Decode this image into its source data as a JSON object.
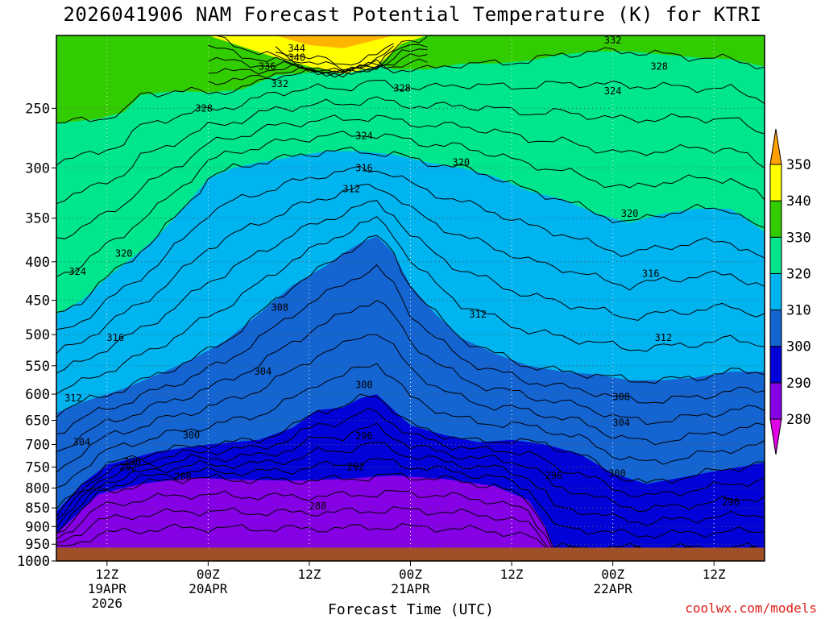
{
  "title": "2026041906 NAM Forecast Potential Temperature (K) for KTRI",
  "credit": "coolwx.com/models",
  "chart_data": {
    "type": "contour",
    "title": "2026041906 NAM Forecast Potential Temperature (K) for KTRI",
    "xlabel": "Forecast Time (UTC)",
    "ylabel": "",
    "x_range_hours": [
      0,
      84
    ],
    "y_range_hpa": [
      1000,
      200
    ],
    "y_scale": "log-pressure",
    "y_ticks": [
      250,
      300,
      350,
      400,
      450,
      500,
      550,
      600,
      650,
      700,
      750,
      800,
      850,
      900,
      950,
      1000
    ],
    "x_ticks": [
      {
        "hour": 6,
        "label": "12Z",
        "sub1": "19APR",
        "sub2": "2026"
      },
      {
        "hour": 18,
        "label": "00Z",
        "sub1": "20APR",
        "sub2": ""
      },
      {
        "hour": 30,
        "label": "12Z",
        "sub1": "",
        "sub2": ""
      },
      {
        "hour": 42,
        "label": "00Z",
        "sub1": "21APR",
        "sub2": ""
      },
      {
        "hour": 54,
        "label": "12Z",
        "sub1": "",
        "sub2": ""
      },
      {
        "hour": 66,
        "label": "00Z",
        "sub1": "22APR",
        "sub2": ""
      },
      {
        "hour": 78,
        "label": "12Z",
        "sub1": "",
        "sub2": ""
      }
    ],
    "colorbar": {
      "levels": [
        280,
        290,
        300,
        310,
        320,
        330,
        340,
        350
      ],
      "colors": [
        "#8600e6",
        "#0202d8",
        "#1464d2",
        "#00b4f0",
        "#00e68c",
        "#32cd00",
        "#ffff00",
        "#ffb400"
      ],
      "extend_low_color": "#e100e6",
      "extend_high_color": "#ffa000"
    },
    "terrain_color": "#a05028",
    "terrain_top_hpa": 960,
    "contour_interval_k": 4,
    "isentrope_levels": [
      284,
      286,
      288,
      290,
      292,
      294,
      296,
      298,
      300,
      302,
      304,
      306,
      308,
      310,
      312,
      314,
      316,
      318,
      320,
      322,
      324,
      326,
      328,
      330,
      332,
      334,
      336,
      338,
      340,
      342,
      344
    ],
    "contour_labels": [
      {
        "value": 344,
        "hour": 28.5,
        "hpa": 208
      },
      {
        "value": 340,
        "hour": 28.5,
        "hpa": 214
      },
      {
        "value": 336,
        "hour": 25.0,
        "hpa": 220
      },
      {
        "value": 332,
        "hour": 26.5,
        "hpa": 232
      },
      {
        "value": 332,
        "hour": 66.0,
        "hpa": 203
      },
      {
        "value": 328,
        "hour": 17.5,
        "hpa": 250
      },
      {
        "value": 328,
        "hour": 41.0,
        "hpa": 235
      },
      {
        "value": 328,
        "hour": 71.5,
        "hpa": 220
      },
      {
        "value": 324,
        "hour": 36.5,
        "hpa": 272
      },
      {
        "value": 324,
        "hour": 66.0,
        "hpa": 237
      },
      {
        "value": 324,
        "hour": 2.5,
        "hpa": 412
      },
      {
        "value": 320,
        "hour": 48.0,
        "hpa": 295
      },
      {
        "value": 320,
        "hour": 68.0,
        "hpa": 345
      },
      {
        "value": 320,
        "hour": 8.0,
        "hpa": 390
      },
      {
        "value": 316,
        "hour": 36.5,
        "hpa": 300
      },
      {
        "value": 316,
        "hour": 70.5,
        "hpa": 415
      },
      {
        "value": 316,
        "hour": 7.0,
        "hpa": 505
      },
      {
        "value": 312,
        "hour": 35.0,
        "hpa": 320
      },
      {
        "value": 312,
        "hour": 50.0,
        "hpa": 470
      },
      {
        "value": 312,
        "hour": 72.0,
        "hpa": 505
      },
      {
        "value": 312,
        "hour": 2.0,
        "hpa": 607
      },
      {
        "value": 308,
        "hour": 26.5,
        "hpa": 460
      },
      {
        "value": 308,
        "hour": 67.0,
        "hpa": 605
      },
      {
        "value": 304,
        "hour": 24.5,
        "hpa": 560
      },
      {
        "value": 304,
        "hour": 67.0,
        "hpa": 655
      },
      {
        "value": 304,
        "hour": 3.0,
        "hpa": 695
      },
      {
        "value": 300,
        "hour": 36.5,
        "hpa": 583
      },
      {
        "value": 300,
        "hour": 16.0,
        "hpa": 680
      },
      {
        "value": 300,
        "hour": 66.5,
        "hpa": 765
      },
      {
        "value": 296,
        "hour": 36.5,
        "hpa": 682
      },
      {
        "value": 296,
        "hour": 59.0,
        "hpa": 770
      },
      {
        "value": 296,
        "hour": 80.0,
        "hpa": 835
      },
      {
        "value": 296,
        "hour": 9.0,
        "hpa": 738
      },
      {
        "value": 292,
        "hour": 8.5,
        "hpa": 750
      },
      {
        "value": 292,
        "hour": 35.5,
        "hpa": 750
      },
      {
        "value": 288,
        "hour": 15.0,
        "hpa": 773
      },
      {
        "value": 288,
        "hour": 31.0,
        "hpa": 845
      }
    ],
    "filled_band_boundaries_hpa": [
      {
        "value": 280,
        "points": [
          [
            0,
            1000
          ],
          [
            84,
            1000
          ]
        ]
      },
      {
        "value": 290,
        "points": [
          [
            0,
            920
          ],
          [
            5,
            815
          ],
          [
            10,
            790
          ],
          [
            16,
            775
          ],
          [
            22,
            780
          ],
          [
            28,
            782
          ],
          [
            34,
            778
          ],
          [
            40,
            770
          ],
          [
            46,
            778
          ],
          [
            52,
            795
          ],
          [
            56,
            830
          ],
          [
            58,
            900
          ],
          [
            59,
            960
          ],
          [
            84,
            960
          ]
        ]
      },
      {
        "value": 300,
        "points": [
          [
            0,
            860
          ],
          [
            3,
            790
          ],
          [
            6,
            745
          ],
          [
            12,
            715
          ],
          [
            18,
            700
          ],
          [
            24,
            690
          ],
          [
            28,
            665
          ],
          [
            31,
            630
          ],
          [
            34,
            625
          ],
          [
            36,
            608
          ],
          [
            38,
            600
          ],
          [
            40,
            630
          ],
          [
            42,
            660
          ],
          [
            46,
            680
          ],
          [
            50,
            695
          ],
          [
            54,
            690
          ],
          [
            58,
            700
          ],
          [
            62,
            720
          ],
          [
            66,
            765
          ],
          [
            70,
            790
          ],
          [
            74,
            775
          ],
          [
            78,
            760
          ],
          [
            84,
            740
          ]
        ]
      },
      {
        "value": 310,
        "points": [
          [
            0,
            635
          ],
          [
            4,
            610
          ],
          [
            8,
            590
          ],
          [
            12,
            565
          ],
          [
            16,
            540
          ],
          [
            20,
            510
          ],
          [
            24,
            470
          ],
          [
            28,
            430
          ],
          [
            32,
            405
          ],
          [
            34,
            390
          ],
          [
            36,
            378
          ],
          [
            38,
            370
          ],
          [
            40,
            390
          ],
          [
            42,
            430
          ],
          [
            45,
            470
          ],
          [
            48,
            505
          ],
          [
            52,
            530
          ],
          [
            56,
            550
          ],
          [
            60,
            560
          ],
          [
            64,
            565
          ],
          [
            68,
            575
          ],
          [
            72,
            575
          ],
          [
            76,
            570
          ],
          [
            80,
            560
          ],
          [
            84,
            560
          ]
        ]
      },
      {
        "value": 320,
        "points": [
          [
            0,
            470
          ],
          [
            3,
            450
          ],
          [
            6,
            420
          ],
          [
            9,
            395
          ],
          [
            12,
            370
          ],
          [
            15,
            340
          ],
          [
            18,
            310
          ],
          [
            21,
            300
          ],
          [
            24,
            295
          ],
          [
            28,
            290
          ],
          [
            32,
            285
          ],
          [
            36,
            285
          ],
          [
            40,
            288
          ],
          [
            44,
            295
          ],
          [
            48,
            300
          ],
          [
            52,
            308
          ],
          [
            56,
            322
          ],
          [
            60,
            330
          ],
          [
            64,
            345
          ],
          [
            68,
            355
          ],
          [
            72,
            345
          ],
          [
            76,
            340
          ],
          [
            80,
            340
          ],
          [
            84,
            365
          ]
        ]
      },
      {
        "value": 330,
        "points": [
          [
            0,
            262
          ],
          [
            5,
            258
          ],
          [
            8,
            253
          ],
          [
            10,
            240
          ],
          [
            14,
            237
          ],
          [
            18,
            238
          ],
          [
            22,
            236
          ],
          [
            26,
            226
          ],
          [
            30,
            224
          ],
          [
            34,
            224
          ],
          [
            38,
            218
          ],
          [
            40,
            222
          ],
          [
            44,
            222
          ],
          [
            48,
            218
          ],
          [
            52,
            218
          ],
          [
            56,
            216
          ],
          [
            60,
            212
          ],
          [
            64,
            210
          ],
          [
            68,
            210
          ],
          [
            72,
            212
          ],
          [
            76,
            214
          ],
          [
            80,
            215
          ],
          [
            84,
            220
          ]
        ]
      },
      {
        "value": 340,
        "points": [
          [
            18,
            200
          ],
          [
            22,
            207
          ],
          [
            26,
            214
          ],
          [
            30,
            220
          ],
          [
            34,
            225
          ],
          [
            38,
            220
          ],
          [
            41,
            205
          ],
          [
            44,
            200
          ]
        ]
      },
      {
        "value": 350,
        "points": [
          [
            26,
            200
          ],
          [
            30,
            206
          ],
          [
            34,
            208
          ],
          [
            37,
            204
          ],
          [
            40,
            200
          ]
        ]
      }
    ]
  }
}
